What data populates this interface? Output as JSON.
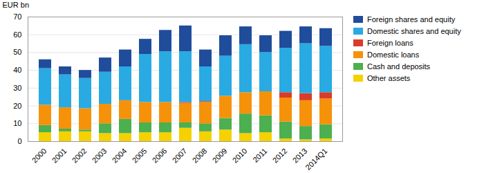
{
  "chart_data": {
    "type": "bar",
    "stacked": true,
    "ylabel": "EUR bn",
    "categories": [
      "2000",
      "2001",
      "2002",
      "2003",
      "2004",
      "2005",
      "2006",
      "2007",
      "2008",
      "2009",
      "2010",
      "2011",
      "2012",
      "2013",
      "2014Q1"
    ],
    "series": [
      {
        "name": "Other assets",
        "color": "#f5d100",
        "values": [
          5.0,
          5.5,
          5.5,
          4.5,
          4.5,
          5.0,
          5.0,
          7.5,
          5.5,
          6.5,
          4.5,
          5.0,
          1.5,
          1.0,
          1.5
        ]
      },
      {
        "name": "Cash and deposits",
        "color": "#4caf50",
        "values": [
          4.0,
          1.5,
          1.0,
          5.5,
          8.0,
          5.5,
          5.5,
          3.0,
          4.5,
          6.5,
          11.0,
          9.5,
          9.5,
          7.5,
          8.0
        ]
      },
      {
        "name": "Domestic loans",
        "color": "#f5920a",
        "values": [
          11.5,
          12.0,
          12.0,
          11.0,
          10.5,
          11.5,
          11.5,
          11.0,
          12.0,
          12.5,
          12.0,
          13.5,
          13.5,
          14.5,
          14.5
        ]
      },
      {
        "name": "Foreign loans",
        "color": "#d93c2a",
        "values": [
          0.0,
          0.0,
          0.0,
          0.0,
          0.0,
          0.0,
          0.0,
          0.5,
          0.5,
          0.0,
          0.0,
          0.0,
          3.0,
          4.0,
          3.5
        ]
      },
      {
        "name": "Domestic shares and equity",
        "color": "#29aae2",
        "values": [
          20.5,
          18.5,
          17.0,
          18.0,
          19.0,
          27.0,
          28.5,
          28.5,
          19.5,
          22.5,
          27.0,
          22.0,
          25.0,
          28.0,
          26.0
        ]
      },
      {
        "name": "Foreign shares and equity",
        "color": "#1f4d9b",
        "values": [
          5.0,
          4.5,
          4.5,
          8.0,
          9.5,
          8.5,
          12.0,
          14.5,
          9.5,
          11.5,
          10.0,
          9.5,
          9.5,
          9.5,
          10.0
        ]
      }
    ],
    "ylim": [
      0,
      70
    ],
    "yticks": [
      0,
      10,
      20,
      30,
      40,
      50,
      60,
      70
    ],
    "grid": true,
    "legend": "right"
  }
}
